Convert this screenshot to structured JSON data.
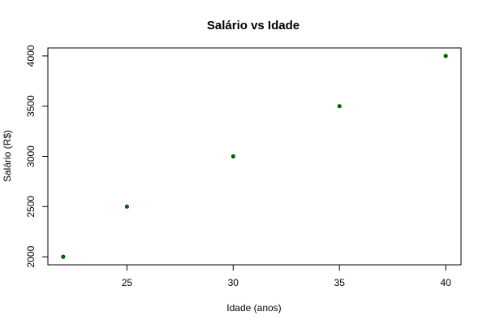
{
  "chart_data": {
    "type": "scatter",
    "title": "Salário vs Idade",
    "xlabel": "Idade (anos)",
    "ylabel": "Salário (R$)",
    "x": [
      22,
      25,
      30,
      35,
      40
    ],
    "y": [
      2000,
      2500,
      3000,
      3500,
      4000
    ],
    "xlim": [
      21.28,
      40.72
    ],
    "ylim": [
      1920,
      4080
    ],
    "xticks": [
      25,
      30,
      35,
      40
    ],
    "yticks": [
      2000,
      2500,
      3000,
      3500,
      4000
    ],
    "grid": false,
    "point_color": "#006400"
  }
}
